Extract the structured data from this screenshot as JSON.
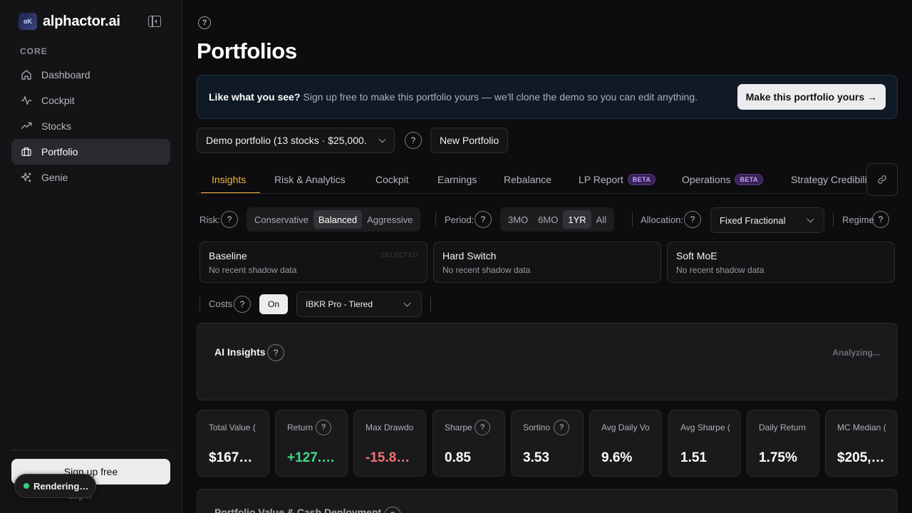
{
  "sidebar": {
    "brand": "alphactor.ai",
    "brand_logo_text": "αK",
    "section": "CORE",
    "items": [
      {
        "label": "Dashboard",
        "icon": "home-icon"
      },
      {
        "label": "Cockpit",
        "icon": "activity-icon"
      },
      {
        "label": "Stocks",
        "icon": "trending-up-icon"
      },
      {
        "label": "Portfolio",
        "icon": "briefcase-icon",
        "active": true
      },
      {
        "label": "Genie",
        "icon": "sparkles-icon"
      }
    ],
    "signup": "Sign up free",
    "login": "Log in",
    "toast": "Rendering…"
  },
  "header": {
    "help": "?",
    "title": "Portfolios"
  },
  "banner": {
    "strong": "Like what you see?",
    "text": "Sign up free to make this portfolio yours — we'll clone the demo so you can edit anything.",
    "button": "Make this portfolio yours →"
  },
  "portfolio": {
    "selected": "Demo portfolio (13 stocks · $25,000.",
    "help": "?",
    "new_button": "New Portfolio"
  },
  "tabs": [
    {
      "label": "Insights",
      "active": true
    },
    {
      "label": "Risk & Analytics"
    },
    {
      "label": "Cockpit"
    },
    {
      "label": "Earnings"
    },
    {
      "label": "Rebalance"
    },
    {
      "label": "LP Report",
      "badge": "BETA"
    },
    {
      "label": "Operations",
      "badge": "BETA"
    },
    {
      "label": "Strategy Credibility"
    }
  ],
  "controls": {
    "risk_label": "Risk:",
    "risk_options": [
      "Conservative",
      "Balanced",
      "Aggressive"
    ],
    "risk_selected": "Balanced",
    "period_label": "Period:",
    "period_options": [
      "3MO",
      "6MO",
      "1YR",
      "All"
    ],
    "period_selected": "1YR",
    "allocation_label": "Allocation:",
    "allocation_value": "Fixed Fractional",
    "regime_label": "Regime",
    "costs_label": "Costs",
    "costs_toggle": "On",
    "broker_value": "IBKR Pro - Tiered"
  },
  "strategies": [
    {
      "title": "Baseline",
      "subtitle": "No recent shadow data",
      "badge": "SELECTED"
    },
    {
      "title": "Hard Switch",
      "subtitle": "No recent shadow data"
    },
    {
      "title": "Soft MoE",
      "subtitle": "No recent shadow data"
    }
  ],
  "ai": {
    "title": "AI Insights",
    "status": "Analyzing..."
  },
  "metrics": [
    {
      "label": "Total Value (",
      "value": "$167…",
      "color": "#ffffff"
    },
    {
      "label": "Return",
      "value": "+127.…",
      "color": "#3ddc84",
      "help": true
    },
    {
      "label": "Max Drawdo",
      "value": "-15.8…",
      "color": "#f07070"
    },
    {
      "label": "Sharpe",
      "value": "0.85",
      "color": "#ffffff",
      "help": true
    },
    {
      "label": "Sortino",
      "value": "3.53",
      "color": "#ffffff",
      "help": true
    },
    {
      "label": "Avg Daily Vo",
      "value": "9.6%",
      "color": "#ffffff"
    },
    {
      "label": "Avg Sharpe (",
      "value": "1.51",
      "color": "#ffffff"
    },
    {
      "label": "Daily Return",
      "value": "1.75%",
      "color": "#ffffff"
    },
    {
      "label": "MC Median (",
      "value": "$205,…",
      "color": "#ffffff"
    }
  ],
  "chart_panel": {
    "title": "Portfolio Value & Cash Deployment"
  },
  "colors": {
    "accent": "#f5b73b",
    "positive": "#3ddc84",
    "negative": "#f07070",
    "beta": "#c69cff"
  }
}
